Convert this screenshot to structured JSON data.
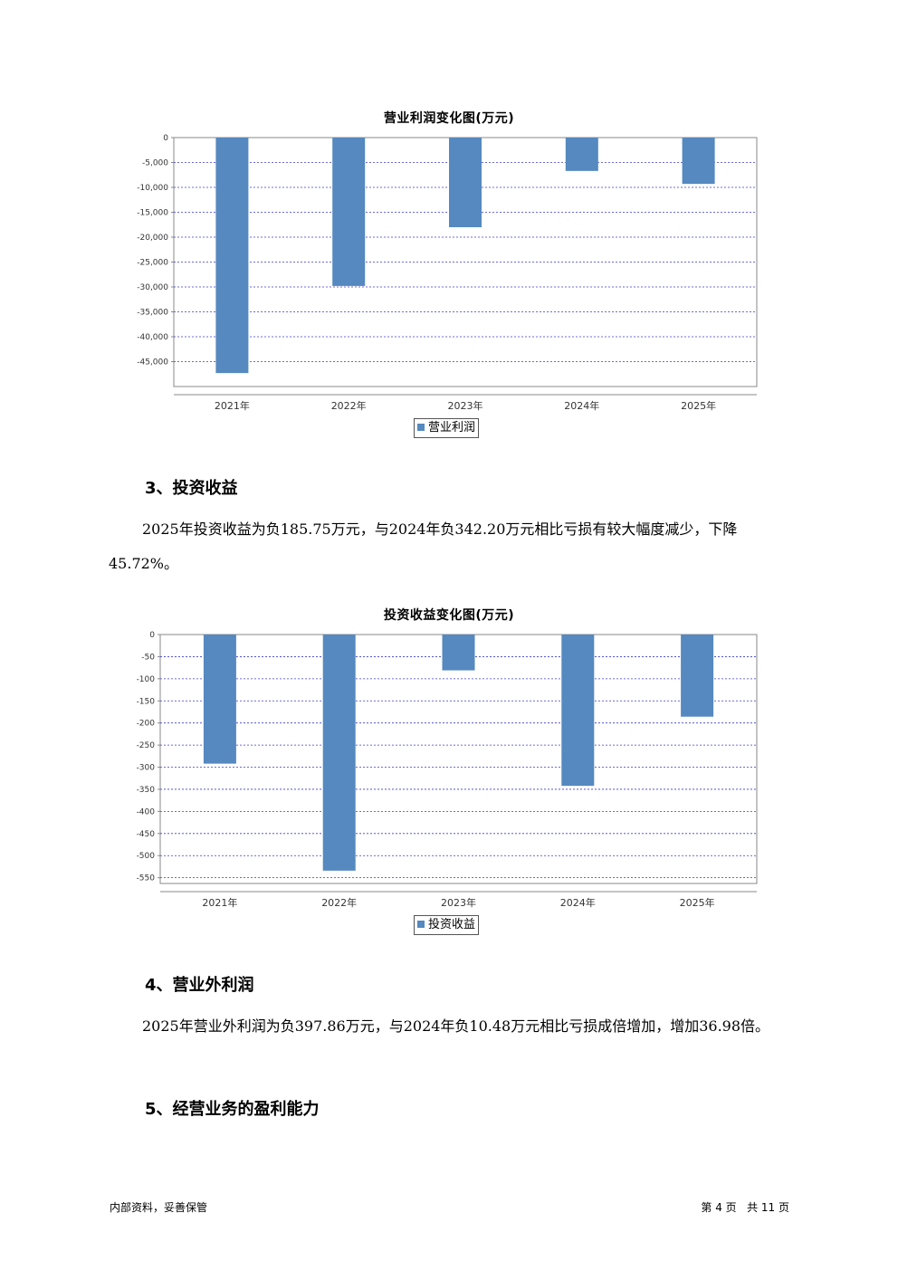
{
  "charts": [
    {
      "type": "bar",
      "title": "营业利润变化图(万元)",
      "categories": [
        "2021年",
        "2022年",
        "2023年",
        "2024年",
        "2025年"
      ],
      "series": [
        {
          "name": "营业利润",
          "values": [
            -47300,
            -29800,
            -18000,
            -6700,
            -9300
          ]
        }
      ],
      "yticks": [
        "0",
        "-5,000",
        "-10,000",
        "-15,000",
        "-20,000",
        "-25,000",
        "-30,000",
        "-35,000",
        "-40,000",
        "-45,000"
      ],
      "ylim": [
        -50000,
        0
      ],
      "color": "#5589bf",
      "legend": "bottom-center",
      "grid": true
    },
    {
      "type": "bar",
      "title": "投资收益变化图(万元)",
      "categories": [
        "2021年",
        "2022年",
        "2023年",
        "2024年",
        "2025年"
      ],
      "series": [
        {
          "name": "投资收益",
          "values": [
            -292,
            -534,
            -81,
            -342.2,
            -185.75
          ]
        }
      ],
      "yticks": [
        "0",
        "-50",
        "-100",
        "-150",
        "-200",
        "-250",
        "-300",
        "-350",
        "-400",
        "-450",
        "-500",
        "-550"
      ],
      "ylim": [
        -563,
        0
      ],
      "color": "#5589bf",
      "legend": "bottom-center",
      "grid": true
    }
  ],
  "sections": {
    "s3_heading": "3、投资收益",
    "s3_text": "2025年投资收益为负185.75万元，与2024年负342.20万元相比亏损有较大幅度减少，下降45.72%。",
    "s4_heading": "4、营业外利润",
    "s4_text": "2025年营业外利润为负397.86万元，与2024年负10.48万元相比亏损成倍增加，增加36.98倍。",
    "s5_heading": "5、经营业务的盈利能力"
  },
  "footer": {
    "left": "内部资料，妥善保管",
    "right": "第 4 页   共 11 页"
  }
}
